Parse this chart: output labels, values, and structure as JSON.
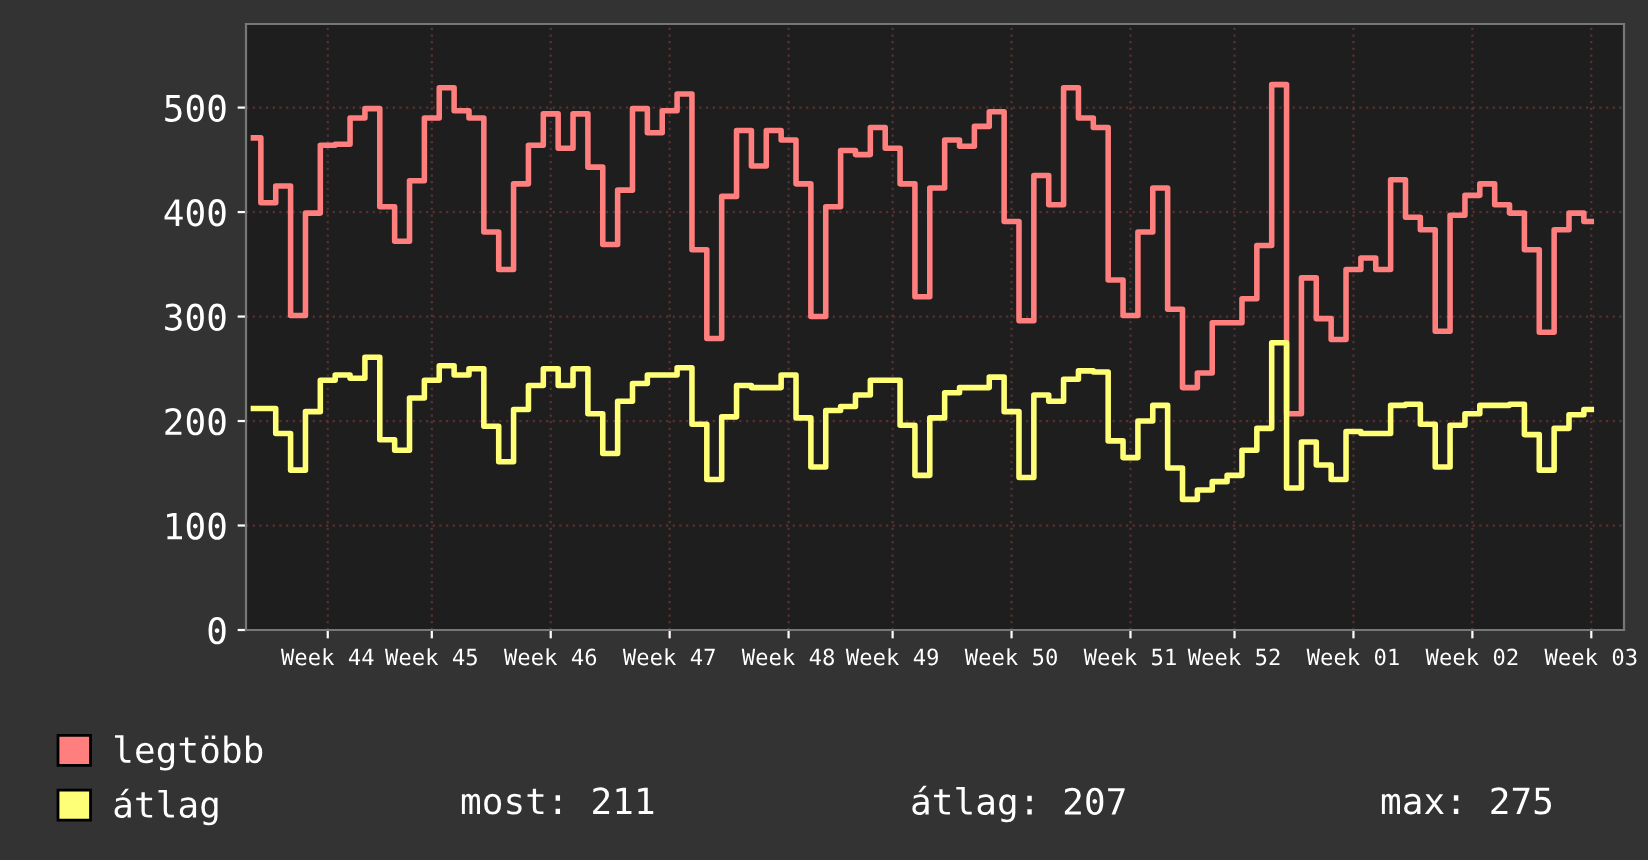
{
  "chart_data": {
    "type": "step",
    "categories": [
      null,
      null,
      null,
      null,
      null,
      "Week 44",
      null,
      null,
      null,
      null,
      null,
      null,
      "Week 45",
      null,
      null,
      null,
      null,
      null,
      null,
      null,
      "Week 46",
      null,
      null,
      null,
      null,
      null,
      null,
      null,
      "Week 47",
      null,
      null,
      null,
      null,
      null,
      null,
      null,
      "Week 48",
      null,
      null,
      null,
      null,
      null,
      null,
      "Week 49",
      null,
      null,
      null,
      null,
      null,
      null,
      null,
      "Week 50",
      null,
      null,
      null,
      null,
      null,
      null,
      null,
      "Week 51",
      null,
      null,
      null,
      null,
      null,
      null,
      "Week 52",
      null,
      null,
      null,
      null,
      null,
      null,
      null,
      "Week 01",
      null,
      null,
      null,
      null,
      null,
      null,
      null,
      "Week 02",
      null,
      null,
      null,
      null,
      null,
      null,
      null,
      "Week 03"
    ],
    "series": [
      {
        "name": "legtöbb",
        "color": "#ff7f7f",
        "values": [
          471,
          409,
          425,
          301,
          399,
          464,
          465,
          490,
          499,
          405,
          372,
          430,
          490,
          519,
          497,
          490,
          381,
          345,
          427,
          464,
          494,
          461,
          494,
          443,
          369,
          421,
          499,
          476,
          497,
          513,
          364,
          279,
          415,
          478,
          444,
          478,
          469,
          427,
          300,
          405,
          459,
          455,
          481,
          461,
          427,
          319,
          423,
          469,
          463,
          482,
          496,
          391,
          296,
          435,
          407,
          519,
          490,
          481,
          335,
          301,
          381,
          423,
          307,
          232,
          246,
          294,
          294,
          317,
          368,
          522,
          207,
          337,
          298,
          278,
          345,
          356,
          345,
          431,
          395,
          383,
          286,
          397,
          416,
          427,
          407,
          399,
          364,
          285,
          383,
          399,
          391
        ]
      },
      {
        "name": "átlag",
        "color": "#ffff77",
        "values": [
          212,
          212,
          188,
          153,
          209,
          239,
          244,
          241,
          261,
          182,
          172,
          222,
          239,
          253,
          244,
          250,
          195,
          161,
          211,
          234,
          250,
          234,
          250,
          207,
          169,
          219,
          236,
          244,
          244,
          251,
          197,
          144,
          204,
          234,
          232,
          232,
          244,
          203,
          156,
          210,
          214,
          225,
          239,
          239,
          196,
          148,
          203,
          227,
          232,
          232,
          242,
          209,
          146,
          225,
          219,
          240,
          248,
          247,
          181,
          165,
          200,
          215,
          155,
          125,
          134,
          142,
          148,
          172,
          193,
          275,
          136,
          180,
          158,
          144,
          190,
          188,
          188,
          215,
          216,
          197,
          156,
          196,
          207,
          215,
          215,
          216,
          187,
          153,
          193,
          206,
          211
        ]
      }
    ],
    "ylim": [
      0,
      580
    ],
    "yticks": [
      0,
      100,
      200,
      300,
      400,
      500
    ],
    "grid": true,
    "legend": "bottom",
    "annotations": [
      "most: 211",
      "átlag: 207",
      "max: 275"
    ]
  }
}
